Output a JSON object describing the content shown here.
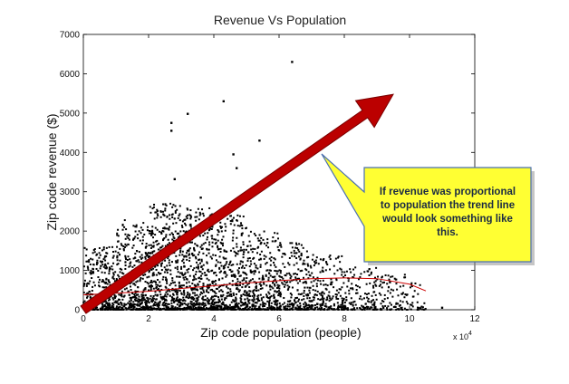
{
  "chart_data": {
    "type": "scatter",
    "title": "Revenue Vs Population",
    "xlabel": "Zip code population (people)",
    "ylabel": "Zip code revenue ($)",
    "x_scale_label": "x 10",
    "x_scale_exponent": "4",
    "xlim": [
      0,
      12
    ],
    "ylim": [
      0,
      7000
    ],
    "xticks": [
      0,
      2,
      4,
      6,
      8,
      10,
      12
    ],
    "yticks": [
      0,
      1000,
      2000,
      3000,
      4000,
      5000,
      6000,
      7000
    ],
    "grid": false,
    "scatter_outliers": [
      {
        "x": 6.4,
        "y": 6300
      },
      {
        "x": 4.3,
        "y": 5300
      },
      {
        "x": 3.2,
        "y": 4980
      },
      {
        "x": 2.7,
        "y": 4750
      },
      {
        "x": 2.7,
        "y": 4550
      },
      {
        "x": 5.4,
        "y": 4300
      },
      {
        "x": 4.6,
        "y": 3950
      },
      {
        "x": 4.7,
        "y": 3600
      },
      {
        "x": 2.8,
        "y": 3320
      },
      {
        "x": 3.6,
        "y": 2850
      },
      {
        "x": 11.0,
        "y": 50
      },
      {
        "x": 9.4,
        "y": 700
      }
    ],
    "scatter_density": {
      "description_bins": "approximate dense cloud bins in data units",
      "bins": [
        {
          "x0": 0.0,
          "x1": 1.0,
          "ymax": 1600,
          "count": 330
        },
        {
          "x0": 1.0,
          "x1": 2.0,
          "ymax": 2300,
          "count": 420
        },
        {
          "x0": 2.0,
          "x1": 3.0,
          "ymax": 2700,
          "count": 480
        },
        {
          "x0": 3.0,
          "x1": 4.0,
          "ymax": 2600,
          "count": 460
        },
        {
          "x0": 4.0,
          "x1": 5.0,
          "ymax": 2400,
          "count": 400
        },
        {
          "x0": 5.0,
          "x1": 6.0,
          "ymax": 2000,
          "count": 330
        },
        {
          "x0": 6.0,
          "x1": 7.0,
          "ymax": 1700,
          "count": 260
        },
        {
          "x0": 7.0,
          "x1": 8.0,
          "ymax": 1400,
          "count": 200
        },
        {
          "x0": 8.0,
          "x1": 9.0,
          "ymax": 1100,
          "count": 140
        },
        {
          "x0": 9.0,
          "x1": 10.0,
          "ymax": 900,
          "count": 90
        },
        {
          "x0": 10.0,
          "x1": 10.5,
          "ymax": 700,
          "count": 30
        }
      ]
    },
    "trend_line": {
      "color": "#cc0000",
      "x": [
        0,
        1,
        2,
        3,
        4,
        5,
        6,
        7,
        8,
        9,
        10,
        10.5
      ],
      "y": [
        380,
        420,
        470,
        540,
        610,
        680,
        740,
        790,
        810,
        790,
        650,
        480
      ]
    },
    "proportional_arrow": {
      "color": "#bb0000",
      "from": {
        "x": 0,
        "y": 0
      },
      "to": {
        "x": 9.0,
        "y": 5200
      }
    }
  },
  "callout": {
    "text": "If revenue was proportional to population the trend line would look something like this.",
    "fill": "#ffff33",
    "stroke": "#4a6fb0"
  }
}
